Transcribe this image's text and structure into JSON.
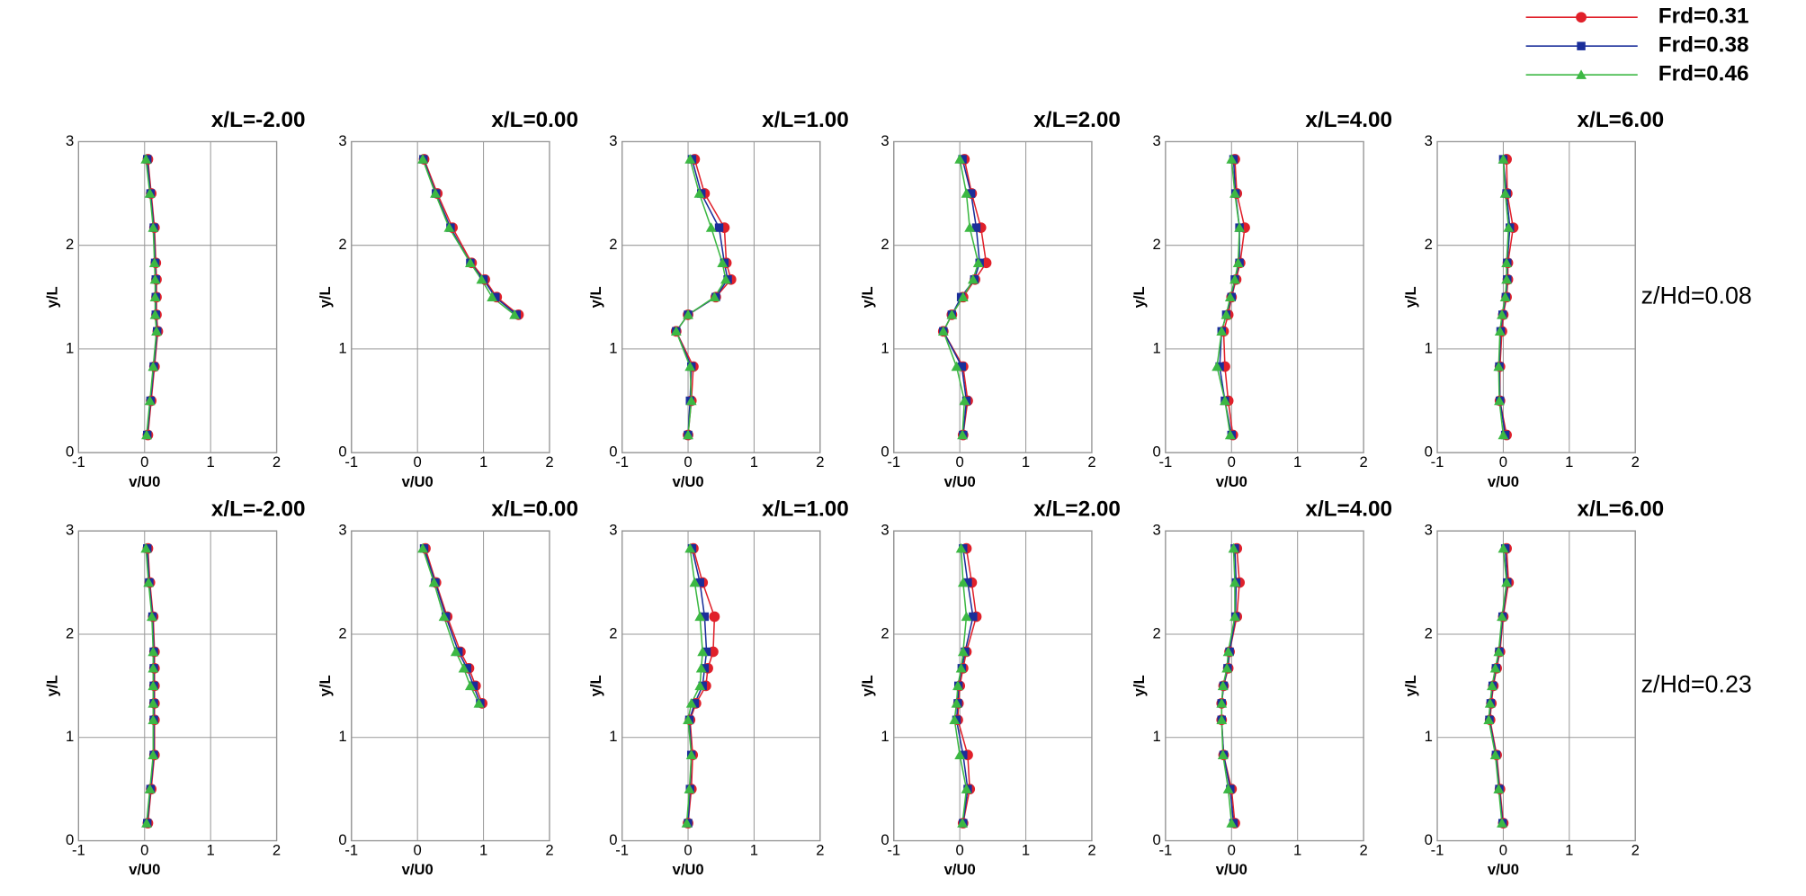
{
  "legend": [
    {
      "name": "Frd=0.31",
      "color": "#e0202a",
      "marker": "circle"
    },
    {
      "name": "Frd=0.38",
      "color": "#1a2e9a",
      "marker": "square"
    },
    {
      "name": "Frd=0.46",
      "color": "#3cb843",
      "marker": "triangle"
    }
  ],
  "chart_data": [
    {
      "type": "line",
      "title": "x/L=-2.00",
      "xlabel": "v/U0",
      "ylabel": "y/L",
      "xlim": [
        -1,
        2
      ],
      "xticks": [
        -1,
        0,
        1,
        2
      ],
      "ylim": [
        0,
        3
      ],
      "yticks": [
        0,
        1,
        2,
        3
      ],
      "grid": true,
      "y": [
        0.17,
        0.5,
        0.83,
        1.17,
        1.33,
        1.5,
        1.67,
        1.83,
        2.17,
        2.5,
        2.83
      ],
      "series": [
        {
          "values": [
            0.05,
            0.1,
            0.15,
            0.2,
            0.18,
            0.18,
            0.18,
            0.17,
            0.15,
            0.1,
            0.05
          ]
        },
        {
          "values": [
            0.04,
            0.09,
            0.14,
            0.19,
            0.17,
            0.17,
            0.17,
            0.16,
            0.14,
            0.09,
            0.04
          ]
        },
        {
          "values": [
            0.03,
            0.08,
            0.13,
            0.18,
            0.16,
            0.16,
            0.16,
            0.15,
            0.13,
            0.08,
            0.02
          ]
        }
      ]
    },
    {
      "type": "line",
      "title": "x/L=0.00",
      "xlabel": "v/U0",
      "ylabel": "y/L",
      "xlim": [
        -1,
        2
      ],
      "xticks": [
        -1,
        0,
        1,
        2
      ],
      "ylim": [
        0,
        3
      ],
      "yticks": [
        0,
        1,
        2,
        3
      ],
      "grid": true,
      "y": [
        1.33,
        1.5,
        1.67,
        1.83,
        2.17,
        2.5,
        2.83
      ],
      "series": [
        {
          "values": [
            1.53,
            1.2,
            1.02,
            0.82,
            0.53,
            0.3,
            0.1
          ]
        },
        {
          "values": [
            1.5,
            1.18,
            1.0,
            0.8,
            0.5,
            0.28,
            0.09
          ]
        },
        {
          "values": [
            1.47,
            1.13,
            0.97,
            0.8,
            0.48,
            0.27,
            0.08
          ]
        }
      ]
    },
    {
      "type": "line",
      "title": "x/L=1.00",
      "xlabel": "v/U0",
      "ylabel": "y/L",
      "xlim": [
        -1,
        2
      ],
      "xticks": [
        -1,
        0,
        1,
        2
      ],
      "ylim": [
        0,
        3
      ],
      "yticks": [
        0,
        1,
        2,
        3
      ],
      "grid": true,
      "y": [
        0.17,
        0.5,
        0.83,
        1.17,
        1.33,
        1.5,
        1.67,
        1.83,
        2.17,
        2.5,
        2.83
      ],
      "series": [
        {
          "values": [
            0,
            0.05,
            0.08,
            -0.18,
            0,
            0.42,
            0.65,
            0.58,
            0.55,
            0.25,
            0.1
          ]
        },
        {
          "values": [
            0,
            0.03,
            0.05,
            -0.18,
            0,
            0.42,
            0.6,
            0.55,
            0.47,
            0.2,
            0.06
          ]
        },
        {
          "values": [
            0,
            0.05,
            0.03,
            -0.18,
            0,
            0.4,
            0.57,
            0.52,
            0.35,
            0.17,
            0.03
          ]
        }
      ]
    },
    {
      "type": "line",
      "title": "x/L=2.00",
      "xlabel": "v/U0",
      "ylabel": "y/L",
      "xlim": [
        -1,
        2
      ],
      "xticks": [
        -1,
        0,
        1,
        2
      ],
      "ylim": [
        0,
        3
      ],
      "yticks": [
        0,
        1,
        2,
        3
      ],
      "grid": true,
      "y": [
        0.17,
        0.5,
        0.83,
        1.17,
        1.33,
        1.5,
        1.67,
        1.83,
        2.17,
        2.5,
        2.83
      ],
      "series": [
        {
          "values": [
            0.05,
            0.12,
            0.05,
            -0.25,
            -0.12,
            0.05,
            0.23,
            0.4,
            0.32,
            0.18,
            0.07
          ]
        },
        {
          "values": [
            0.05,
            0.1,
            0.03,
            -0.25,
            -0.12,
            0.02,
            0.22,
            0.3,
            0.25,
            0.17,
            0.04
          ]
        },
        {
          "values": [
            0.04,
            0.07,
            -0.05,
            -0.25,
            -0.12,
            0.05,
            0.2,
            0.28,
            0.15,
            0.1,
            0.0
          ]
        }
      ]
    },
    {
      "type": "line",
      "title": "x/L=4.00",
      "xlabel": "v/U0",
      "ylabel": "y/L",
      "xlim": [
        -1,
        2
      ],
      "xticks": [
        -1,
        0,
        1,
        2
      ],
      "ylim": [
        0,
        3
      ],
      "yticks": [
        0,
        1,
        2,
        3
      ],
      "grid": true,
      "y": [
        0.17,
        0.5,
        0.83,
        1.17,
        1.33,
        1.5,
        1.67,
        1.83,
        2.17,
        2.5,
        2.83
      ],
      "series": [
        {
          "values": [
            0.02,
            -0.05,
            -0.1,
            -0.12,
            -0.05,
            0,
            0.07,
            0.13,
            0.2,
            0.08,
            0.05
          ]
        },
        {
          "values": [
            0.0,
            -0.1,
            -0.18,
            -0.15,
            -0.08,
            0,
            0.05,
            0.12,
            0.12,
            0.06,
            0.03
          ]
        },
        {
          "values": [
            -0.02,
            -0.1,
            -0.22,
            -0.15,
            -0.08,
            -0.02,
            0.05,
            0.1,
            0.12,
            0.05,
            0.0
          ]
        }
      ]
    },
    {
      "type": "line",
      "title": "x/L=6.00",
      "xlabel": "v/U0",
      "ylabel": "y/L",
      "xlim": [
        -1,
        2
      ],
      "xticks": [
        -1,
        0,
        1,
        2
      ],
      "ylim": [
        0,
        3
      ],
      "yticks": [
        0,
        1,
        2,
        3
      ],
      "grid": true,
      "annotation": "z/Hd=0.08",
      "y": [
        0.17,
        0.5,
        0.83,
        1.17,
        1.33,
        1.5,
        1.67,
        1.83,
        2.17,
        2.5,
        2.83
      ],
      "series": [
        {
          "values": [
            0.05,
            -0.05,
            -0.05,
            -0.02,
            0,
            0.05,
            0.07,
            0.07,
            0.15,
            0.06,
            0.05
          ]
        },
        {
          "values": [
            0.03,
            -0.05,
            -0.06,
            -0.04,
            -0.01,
            0.04,
            0.06,
            0.06,
            0.1,
            0.05,
            0.0
          ]
        },
        {
          "values": [
            0.0,
            -0.06,
            -0.07,
            -0.05,
            -0.02,
            0.03,
            0.05,
            0.05,
            0.08,
            0.03,
            0.0
          ]
        }
      ]
    },
    {
      "type": "line",
      "title": "x/L=-2.00",
      "xlabel": "v/U0",
      "ylabel": "y/L",
      "xlim": [
        -1,
        2
      ],
      "xticks": [
        -1,
        0,
        1,
        2
      ],
      "ylim": [
        0,
        3
      ],
      "yticks": [
        0,
        1,
        2,
        3
      ],
      "grid": true,
      "y": [
        0.17,
        0.5,
        0.83,
        1.17,
        1.33,
        1.5,
        1.67,
        1.83,
        2.17,
        2.5,
        2.83
      ],
      "series": [
        {
          "values": [
            0.05,
            0.1,
            0.15,
            0.15,
            0.15,
            0.15,
            0.15,
            0.15,
            0.13,
            0.08,
            0.05
          ]
        },
        {
          "values": [
            0.04,
            0.09,
            0.14,
            0.14,
            0.14,
            0.14,
            0.14,
            0.14,
            0.12,
            0.07,
            0.04
          ]
        },
        {
          "values": [
            0.03,
            0.08,
            0.13,
            0.13,
            0.13,
            0.13,
            0.13,
            0.13,
            0.11,
            0.06,
            0.02
          ]
        }
      ]
    },
    {
      "type": "line",
      "title": "x/L=0.00",
      "xlabel": "v/U0",
      "ylabel": "y/L",
      "xlim": [
        -1,
        2
      ],
      "xticks": [
        -1,
        0,
        1,
        2
      ],
      "ylim": [
        0,
        3
      ],
      "yticks": [
        0,
        1,
        2,
        3
      ],
      "grid": true,
      "y": [
        1.33,
        1.5,
        1.67,
        1.83,
        2.17,
        2.5,
        2.83
      ],
      "series": [
        {
          "values": [
            0.98,
            0.88,
            0.78,
            0.65,
            0.45,
            0.28,
            0.12
          ]
        },
        {
          "values": [
            0.95,
            0.85,
            0.75,
            0.62,
            0.43,
            0.27,
            0.1
          ]
        },
        {
          "values": [
            0.93,
            0.8,
            0.7,
            0.58,
            0.4,
            0.25,
            0.08
          ]
        }
      ]
    },
    {
      "type": "line",
      "title": "x/L=1.00",
      "xlabel": "v/U0",
      "ylabel": "y/L",
      "xlim": [
        -1,
        2
      ],
      "xticks": [
        -1,
        0,
        1,
        2
      ],
      "ylim": [
        0,
        3
      ],
      "yticks": [
        0,
        1,
        2,
        3
      ],
      "grid": true,
      "y": [
        0.17,
        0.5,
        0.83,
        1.17,
        1.33,
        1.5,
        1.67,
        1.83,
        2.17,
        2.5,
        2.83
      ],
      "series": [
        {
          "values": [
            0,
            0.05,
            0.07,
            0.03,
            0.12,
            0.27,
            0.3,
            0.38,
            0.4,
            0.22,
            0.08
          ]
        },
        {
          "values": [
            0,
            0.03,
            0.05,
            0.02,
            0.1,
            0.22,
            0.25,
            0.28,
            0.25,
            0.18,
            0.06
          ]
        },
        {
          "values": [
            -0.02,
            0.02,
            0.05,
            0.0,
            0.05,
            0.18,
            0.2,
            0.22,
            0.18,
            0.1,
            0.03
          ]
        }
      ]
    },
    {
      "type": "line",
      "title": "x/L=2.00",
      "xlabel": "v/U0",
      "ylabel": "y/L",
      "xlim": [
        -1,
        2
      ],
      "xticks": [
        -1,
        0,
        1,
        2
      ],
      "ylim": [
        0,
        3
      ],
      "yticks": [
        0,
        1,
        2,
        3
      ],
      "grid": true,
      "y": [
        0.17,
        0.5,
        0.83,
        1.17,
        1.33,
        1.5,
        1.67,
        1.83,
        2.17,
        2.5,
        2.83
      ],
      "series": [
        {
          "values": [
            0.05,
            0.15,
            0.12,
            -0.03,
            -0.02,
            0.0,
            0.05,
            0.1,
            0.25,
            0.18,
            0.1
          ]
        },
        {
          "values": [
            0.05,
            0.12,
            0.05,
            -0.05,
            -0.03,
            -0.02,
            0.03,
            0.08,
            0.2,
            0.12,
            0.05
          ]
        },
        {
          "values": [
            0.04,
            0.1,
            0.0,
            -0.08,
            -0.05,
            -0.03,
            0.02,
            0.05,
            0.1,
            0.05,
            0.02
          ]
        }
      ]
    },
    {
      "type": "line",
      "title": "x/L=4.00",
      "xlabel": "v/U0",
      "ylabel": "y/L",
      "xlim": [
        -1,
        2
      ],
      "xticks": [
        -1,
        0,
        1,
        2
      ],
      "ylim": [
        0,
        3
      ],
      "yticks": [
        0,
        1,
        2,
        3
      ],
      "grid": true,
      "y": [
        0.17,
        0.5,
        0.83,
        1.17,
        1.33,
        1.5,
        1.67,
        1.83,
        2.17,
        2.5,
        2.83
      ],
      "series": [
        {
          "values": [
            0.05,
            0.0,
            -0.12,
            -0.15,
            -0.15,
            -0.12,
            -0.05,
            -0.03,
            0.08,
            0.12,
            0.08
          ]
        },
        {
          "values": [
            0.03,
            -0.02,
            -0.12,
            -0.15,
            -0.15,
            -0.12,
            -0.06,
            -0.03,
            0.06,
            0.07,
            0.05
          ]
        },
        {
          "values": [
            0.0,
            -0.05,
            -0.13,
            -0.15,
            -0.15,
            -0.13,
            -0.07,
            -0.05,
            0.05,
            0.05,
            0.03
          ]
        }
      ]
    },
    {
      "type": "line",
      "title": "x/L=6.00",
      "xlabel": "v/U0",
      "ylabel": "y/L",
      "xlim": [
        -1,
        2
      ],
      "xticks": [
        -1,
        0,
        1,
        2
      ],
      "ylim": [
        0,
        3
      ],
      "yticks": [
        0,
        1,
        2,
        3
      ],
      "grid": true,
      "annotation": "z/Hd=0.23",
      "y": [
        0.17,
        0.5,
        0.83,
        1.17,
        1.33,
        1.5,
        1.67,
        1.83,
        2.17,
        2.5,
        2.83
      ],
      "series": [
        {
          "values": [
            0.0,
            -0.05,
            -0.1,
            -0.2,
            -0.18,
            -0.15,
            -0.1,
            -0.05,
            0.0,
            0.08,
            0.05
          ]
        },
        {
          "values": [
            -0.01,
            -0.06,
            -0.11,
            -0.21,
            -0.19,
            -0.16,
            -0.11,
            -0.06,
            -0.01,
            0.06,
            0.03
          ]
        },
        {
          "values": [
            -0.02,
            -0.07,
            -0.12,
            -0.22,
            -0.2,
            -0.17,
            -0.12,
            -0.07,
            -0.02,
            0.05,
            0.0
          ]
        }
      ]
    }
  ]
}
